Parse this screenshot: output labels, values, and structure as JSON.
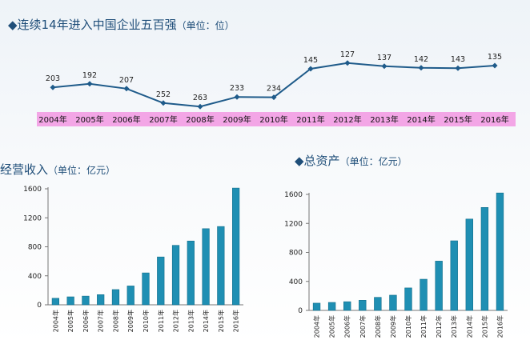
{
  "headings": {
    "rank": {
      "marker": "◆",
      "main": "连续14年进入中国企业五百强",
      "unit": "（单位：位）"
    },
    "revenue": {
      "marker": "",
      "main": "经营收入",
      "unit": "（单位：亿元）"
    },
    "assets": {
      "marker": "◆",
      "main": "总资产",
      "unit": "（单位：亿元）"
    }
  },
  "colors": {
    "line": "#1f5b8a",
    "band": "#f3a6e6",
    "bar": "#1f8fb3",
    "bar_dark": "#136f8c",
    "heading": "#1f4e79"
  },
  "chart_data": [
    {
      "type": "line",
      "categories": [
        "2004年",
        "2005年",
        "2006年",
        "2007年",
        "2008年",
        "2009年",
        "2010年",
        "2011年",
        "2012年",
        "2013年",
        "2014年",
        "2015年",
        "2016年"
      ],
      "values": [
        203,
        192,
        207,
        252,
        263,
        233,
        234,
        145,
        127,
        137,
        142,
        143,
        135
      ],
      "inverted_y": true,
      "ylim": [
        110,
        280
      ]
    },
    {
      "type": "bar",
      "categories": [
        "2004年",
        "2005年",
        "2006年",
        "2007年",
        "2008年",
        "2009年",
        "2010年",
        "2011年",
        "2012年",
        "2013年",
        "2014年",
        "2015年",
        "2016年"
      ],
      "values": [
        90,
        110,
        120,
        140,
        210,
        260,
        440,
        660,
        820,
        880,
        1050,
        1080,
        1610
      ],
      "yticks": [
        0,
        400,
        800,
        1200,
        1600
      ],
      "ylim": [
        0,
        1600
      ]
    },
    {
      "type": "bar",
      "categories": [
        "2004年",
        "2005年",
        "2006年",
        "2007年",
        "2008年",
        "2009年",
        "2010年",
        "2011年",
        "2012年",
        "2013年",
        "2014年",
        "2015年",
        "2016年"
      ],
      "values": [
        100,
        110,
        120,
        140,
        180,
        210,
        310,
        430,
        680,
        960,
        1260,
        1420,
        1620
      ],
      "yticks": [
        0,
        400,
        800,
        1200,
        1600
      ],
      "ylim": [
        0,
        1600
      ]
    }
  ]
}
